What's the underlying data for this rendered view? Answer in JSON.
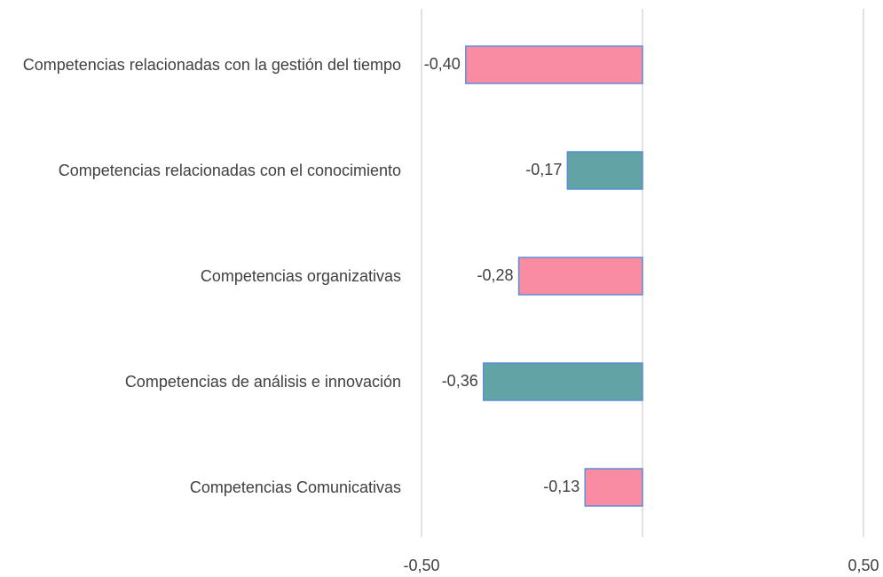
{
  "chart_data": {
    "type": "barh",
    "categories": [
      "Competencias relacionadas con la gestión del tiempo",
      "Competencias relacionadas con el conocimiento",
      "Competencias organizativas",
      "Competencias de análisis e innovación",
      "Competencias Comunicativas"
    ],
    "values": [
      -0.4,
      -0.17,
      -0.28,
      -0.36,
      -0.13
    ],
    "value_labels": [
      "-0,40",
      "-0,17",
      "-0,28",
      "-0,36",
      "-0,13"
    ],
    "colors": [
      "#f98ca3",
      "#62a3a5",
      "#f98ca3",
      "#62a3a5",
      "#f98ca3"
    ],
    "edge_color": "#5b8fd6",
    "xlim": [
      -0.5,
      0.5
    ],
    "xticks": [
      {
        "value": -0.5,
        "label": "-0,50"
      },
      {
        "value": 0.5,
        "label": "0,50"
      }
    ],
    "grid": true
  }
}
